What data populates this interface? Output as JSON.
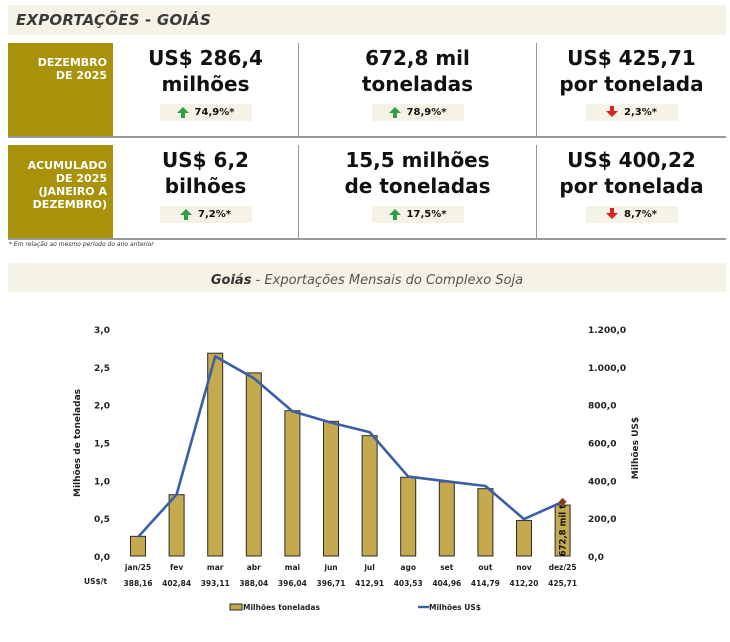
{
  "header": {
    "title": "EXPORTAÇÕES - GOIÁS"
  },
  "summary": [
    {
      "period": "DEZEMBRO DE 2025",
      "period_lines": [
        "DEZEMBRO",
        "DE 2025"
      ],
      "metrics": [
        {
          "line1": "US$ 286,4",
          "line2": "milhões",
          "change": "74,9%*",
          "direction": "up"
        },
        {
          "line1": "672,8 mil",
          "line2": "toneladas",
          "change": "78,9%*",
          "direction": "up"
        },
        {
          "line1": "US$ 425,71",
          "line2": "por tonelada",
          "change": "2,3%*",
          "direction": "down"
        }
      ]
    },
    {
      "period": "ACUMULADO DE 2025 (JANEIRO A DEZEMBRO)",
      "period_lines": [
        "ACUMULADO",
        "DE 2025",
        "(JANEIRO A",
        "DEZEMBRO)"
      ],
      "metrics": [
        {
          "line1": "US$ 6,2",
          "line2": "bilhões",
          "change": "7,2%*",
          "direction": "up"
        },
        {
          "line1": "15,5 milhões",
          "line2": "de toneladas",
          "change": "17,5%*",
          "direction": "up"
        },
        {
          "line1": "US$ 400,22",
          "line2": "por tonelada",
          "change": "8,7%*",
          "direction": "down"
        }
      ]
    }
  ],
  "footnote": "* Em relação ao mesmo período do ano anterior",
  "chart_section": {
    "title_bold": "Goiás",
    "title_rest": " - Exportações Mensais do Complexo Soja"
  },
  "colors": {
    "bar": "#c5a94f",
    "line": "#3a5fa8",
    "period_bg": "#a8920a",
    "up": "#2ea043",
    "down": "#e02020",
    "marker": "#8b3a1a"
  },
  "chart_data": {
    "type": "bar",
    "title": "Goiás - Exportações Mensais do Complexo Soja",
    "categories": [
      "jan/25",
      "fev",
      "mar",
      "abr",
      "mai",
      "jun",
      "jul",
      "ago",
      "set",
      "out",
      "nov",
      "dez/25"
    ],
    "series": [
      {
        "name": "Milhões toneladas",
        "type": "bar",
        "axis": "left",
        "values": [
          0.26,
          0.81,
          2.68,
          2.42,
          1.92,
          1.78,
          1.59,
          1.04,
          0.98,
          0.89,
          0.47,
          0.673
        ]
      },
      {
        "name": "Milhões US$",
        "type": "line",
        "axis": "right",
        "values": [
          100,
          325,
          1055,
          940,
          765,
          705,
          655,
          420,
          395,
          370,
          195,
          286.4
        ]
      }
    ],
    "price_row_label": "US$/t",
    "price_per_ton": [
      "388,16",
      "402,84",
      "393,11",
      "388,04",
      "396,04",
      "396,71",
      "412,91",
      "403,53",
      "404,96",
      "414,79",
      "412,20",
      "425,71"
    ],
    "bar_annotation": {
      "category": "dez/25",
      "text": "672,8 mil t"
    },
    "ylabel": "Milhões de toneladas",
    "y2label": "Milhões US$",
    "ylim": [
      0,
      3.0
    ],
    "y2lim": [
      0,
      1200
    ],
    "yticks": [
      "0,0",
      "0,5",
      "1,0",
      "1,5",
      "2,0",
      "2,5",
      "3,0"
    ],
    "y2ticks": [
      "0,0",
      "200,0",
      "400,0",
      "600,0",
      "800,0",
      "1.000,0",
      "1.200,0"
    ],
    "grid": false,
    "legend": "bottom-center",
    "legend_entries": [
      "Milhões toneladas",
      "Milhões US$"
    ]
  }
}
